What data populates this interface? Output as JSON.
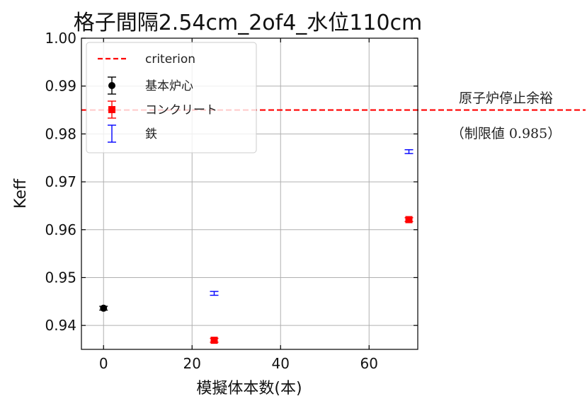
{
  "chart_data": {
    "type": "scatter",
    "title": "格子間隔2.54cm_2of4_水位110cm",
    "xlabel": "模擬体本数(本)",
    "ylabel": "Keff",
    "xlim": [
      -5,
      71
    ],
    "ylim": [
      0.935,
      1.0
    ],
    "xticks": [
      0,
      20,
      40,
      60
    ],
    "yticks": [
      0.94,
      0.95,
      0.96,
      0.97,
      0.98,
      0.99,
      1.0
    ],
    "xtick_labels": [
      "0",
      "20",
      "40",
      "60"
    ],
    "ytick_labels": [
      "0.94",
      "0.95",
      "0.96",
      "0.97",
      "0.98",
      "0.99",
      "1.00"
    ],
    "grid": true,
    "legend_position": "upper-left",
    "criterion": {
      "name": "criterion",
      "value": 0.985,
      "color": "#ff0000",
      "style": "dashed"
    },
    "series": [
      {
        "name": "基本炉心",
        "color": "#000000",
        "marker": "circle",
        "points": [
          {
            "x": 0,
            "y": 0.9436,
            "err": 0.0004
          }
        ]
      },
      {
        "name": "コンクリート",
        "color": "#ff0000",
        "marker": "square",
        "points": [
          {
            "x": 25,
            "y": 0.9369,
            "err": 0.0004
          },
          {
            "x": 69,
            "y": 0.9621,
            "err": 0.0004
          }
        ]
      },
      {
        "name": "鉄",
        "color": "#0000ff",
        "marker": "none",
        "points": [
          {
            "x": 25,
            "y": 0.9467,
            "err": 0.0004
          },
          {
            "x": 69,
            "y": 0.9763,
            "err": 0.0004
          }
        ]
      }
    ]
  },
  "annotation": {
    "line1": "原子炉停止余裕",
    "line2": "（制限値 0.985）"
  }
}
